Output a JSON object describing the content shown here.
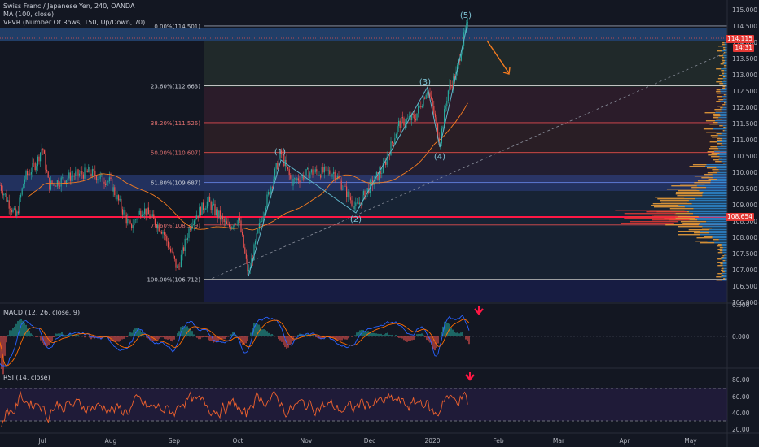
{
  "legend": {
    "symbol_line": "Swiss Franc / Japanese Yen, 240, OANDA",
    "ma_line": "MA (100, close)",
    "vpvr_line": "VPVR (Number Of Rows, 150, Up/Down, 70)"
  },
  "macd_title": "MACD (12, 26, close, 9)",
  "rsi_title": "RSI (14, close)",
  "price_axis": {
    "ticks": [
      "115.000",
      "114.500",
      "114.000",
      "113.500",
      "113.000",
      "112.500",
      "112.000",
      "111.500",
      "111.000",
      "110.500",
      "110.000",
      "109.500",
      "109.000",
      "108.500",
      "108.000",
      "107.500",
      "107.000",
      "106.500",
      "106.000"
    ],
    "last_price": "114.115",
    "countdown": "14:31",
    "marker_price": "108.654"
  },
  "macd_axis": {
    "ticks": [
      "0.500",
      "0.000"
    ]
  },
  "rsi_axis": {
    "ticks": [
      "80.00",
      "60.00",
      "40.00",
      "20.00"
    ]
  },
  "time_axis": {
    "labels": [
      "Jul",
      "Aug",
      "Sep",
      "Oct",
      "Nov",
      "Dec",
      "2020",
      "Feb",
      "Mar",
      "Apr",
      "May"
    ]
  },
  "fib_levels": [
    {
      "label": "0.00%(114.501)",
      "price": 114.501
    },
    {
      "label": "23.60%(112.663)",
      "price": 112.663
    },
    {
      "label": "38.20%(111.526)",
      "price": 111.526
    },
    {
      "label": "50.00%(110.607)",
      "price": 110.607
    },
    {
      "label": "61.80%(109.687)",
      "price": 109.687
    },
    {
      "label": "78.60%(108.379)",
      "price": 108.379
    },
    {
      "label": "100.00%(106.712)",
      "price": 106.712
    }
  ],
  "wave_labels": [
    "(1)",
    "(2)",
    "(3)",
    "(4)",
    "(5)"
  ],
  "colors": {
    "background": "#131722",
    "up": "#26a69a",
    "down": "#ef5350",
    "ma": "#f57c20",
    "fib": "#e04d4d",
    "wave": "#5fb4c8",
    "macd": "#2962ff",
    "signal": "#ff6d00",
    "rsi": "#f0622e",
    "red_tag": "#e53935",
    "blue_tag": "#2962ff"
  }
}
